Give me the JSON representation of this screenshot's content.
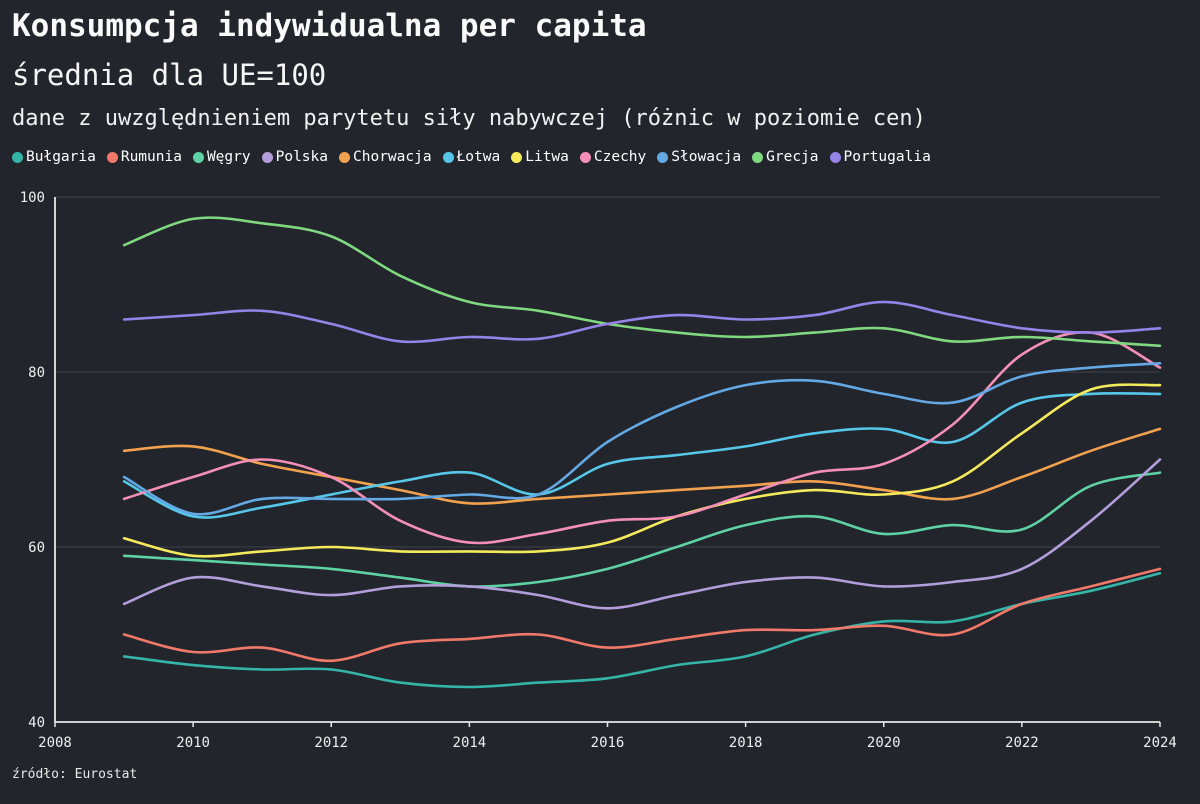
{
  "chart_data": {
    "type": "line",
    "title": "Konsumpcja indywidualna per capita",
    "subtitle": "średnia dla UE=100",
    "note": "dane z uwzględnieniem parytetu siły nabywczej (różnic w poziomie cen)",
    "source": "źródło: Eurostat",
    "x": [
      2009,
      2010,
      2011,
      2012,
      2013,
      2014,
      2015,
      2016,
      2017,
      2018,
      2019,
      2020,
      2021,
      2022,
      2023,
      2024
    ],
    "xlim": [
      2008,
      2024
    ],
    "ylim": [
      40,
      100
    ],
    "x_ticks": [
      2008,
      2010,
      2012,
      2014,
      2016,
      2018,
      2020,
      2022,
      2024
    ],
    "y_ticks": [
      40,
      60,
      80,
      100
    ],
    "grid": true,
    "legend_position": "top",
    "series": [
      {
        "name": "Bułgaria",
        "color": "#35b5a8",
        "values": [
          47.5,
          46.5,
          46,
          46,
          44.5,
          44,
          44.5,
          45,
          46.5,
          47.5,
          50,
          51.5,
          51.5,
          53.5,
          55,
          57
        ]
      },
      {
        "name": "Rumunia",
        "color": "#f0796a",
        "values": [
          50,
          48,
          48.5,
          47,
          49,
          49.5,
          50,
          48.5,
          49.5,
          50.5,
          50.5,
          51,
          50,
          53.5,
          55.5,
          57.5
        ]
      },
      {
        "name": "Węgry",
        "color": "#5fd2a4",
        "values": [
          59,
          58.5,
          58,
          57.5,
          56.5,
          55.5,
          56,
          57.5,
          60,
          62.5,
          63.5,
          61.5,
          62.5,
          62,
          67,
          68.5
        ]
      },
      {
        "name": "Polska",
        "color": "#b39ddb",
        "values": [
          53.5,
          56.5,
          55.5,
          54.5,
          55.5,
          55.5,
          54.5,
          53,
          54.5,
          56,
          56.5,
          55.5,
          56,
          57.5,
          63,
          70
        ]
      },
      {
        "name": "Chorwacja",
        "color": "#f2a14f",
        "values": [
          71,
          71.5,
          69.5,
          68,
          66.5,
          65,
          65.5,
          66,
          66.5,
          67,
          67.5,
          66.5,
          65.5,
          68,
          71,
          73.5
        ]
      },
      {
        "name": "Łotwa",
        "color": "#56c7e8",
        "values": [
          67.5,
          63.5,
          64.5,
          66,
          67.5,
          68.5,
          66,
          69.5,
          70.5,
          71.5,
          73,
          73.5,
          72,
          76.5,
          77.5,
          77.5
        ]
      },
      {
        "name": "Litwa",
        "color": "#f5e95c",
        "values": [
          61,
          59,
          59.5,
          60,
          59.5,
          59.5,
          59.5,
          60.5,
          63.5,
          65.5,
          66.5,
          66,
          67.5,
          73,
          78,
          78.5
        ]
      },
      {
        "name": "Czechy",
        "color": "#f48fb8",
        "values": [
          65.5,
          68,
          70,
          68,
          63,
          60.5,
          61.5,
          63,
          63.5,
          66,
          68.5,
          69.5,
          74,
          82,
          84.5,
          80.5
        ]
      },
      {
        "name": "Słowacja",
        "color": "#64a9e3",
        "values": [
          68,
          63.8,
          65.5,
          65.5,
          65.5,
          66,
          66,
          72,
          76,
          78.5,
          79,
          77.5,
          76.5,
          79.5,
          80.5,
          81
        ]
      },
      {
        "name": "Grecja",
        "color": "#80d980",
        "values": [
          94.5,
          97.5,
          97,
          95.5,
          91,
          88,
          87,
          85.5,
          84.5,
          84,
          84.5,
          85,
          83.5,
          84,
          83.5,
          83
        ]
      },
      {
        "name": "Portugalia",
        "color": "#9583e8",
        "values": [
          86,
          86.5,
          87,
          85.5,
          83.5,
          84,
          83.8,
          85.5,
          86.5,
          86,
          86.5,
          88,
          86.5,
          85,
          84.5,
          85
        ]
      }
    ]
  },
  "colors": {
    "background": "#22252c",
    "grid": "#3d414a",
    "axis": "#e8e8e8",
    "axis_text": "#eeeeee"
  }
}
